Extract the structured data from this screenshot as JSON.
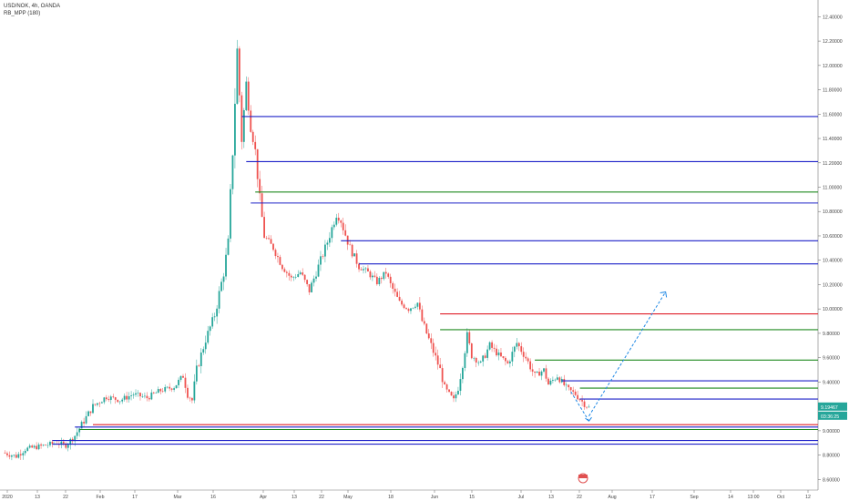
{
  "header": {
    "symbol_line": "USD/NOK, 4h, OANDA",
    "indicator_line": "RB_MPP (180)"
  },
  "price_tags": {
    "last_price": "9.19467",
    "countdown": "03:36:25"
  },
  "colors": {
    "up_candle": "#26a69a",
    "down_candle": "#ef5350",
    "blue_level": "#1c20c8",
    "green_level": "#1f8a1f",
    "red_level": "#e0202a",
    "arrow": "#1e88e5",
    "price_tag": "#26a69a"
  },
  "chart_data": {
    "type": "candlestick",
    "title": "USD/NOK, 4h, OANDA",
    "ylim": [
      8.55,
      12.5
    ],
    "y_ticks": [
      "12.40000",
      "12.20000",
      "12.00000",
      "11.80000",
      "11.60000",
      "11.40000",
      "11.20000",
      "11.00000",
      "10.80000",
      "10.60000",
      "10.40000",
      "10.20000",
      "10.00000",
      "9.80000",
      "9.60000",
      "9.40000",
      "9.20000",
      "9.00000",
      "8.80000",
      "8.60000"
    ],
    "x_ticks": [
      "2020",
      "13",
      "22",
      "Feb",
      "17",
      "Mar",
      "16",
      "Apr",
      "13",
      "22",
      "May",
      "18",
      "Jun",
      "15",
      "Jul",
      "13",
      "22",
      "Aug",
      "17",
      "Sep",
      "14",
      "13:00",
      "Oct",
      "12"
    ],
    "price_path": [
      [
        0,
        8.82
      ],
      [
        3,
        8.79
      ],
      [
        5,
        8.85
      ],
      [
        8,
        8.87
      ],
      [
        12,
        8.9
      ],
      [
        14,
        8.88
      ],
      [
        16,
        8.96
      ],
      [
        18,
        9.08
      ],
      [
        20,
        9.2
      ],
      [
        23,
        9.28
      ],
      [
        26,
        9.25
      ],
      [
        29,
        9.3
      ],
      [
        32,
        9.27
      ],
      [
        35,
        9.33
      ],
      [
        38,
        9.36
      ],
      [
        40,
        9.45
      ],
      [
        41,
        9.3
      ],
      [
        42,
        9.25
      ],
      [
        43,
        9.5
      ],
      [
        45,
        9.75
      ],
      [
        47,
        9.95
      ],
      [
        49,
        10.3
      ],
      [
        50,
        10.55
      ],
      [
        51,
        11.3
      ],
      [
        52,
        12.12
      ],
      [
        53,
        11.4
      ],
      [
        54,
        11.85
      ],
      [
        55,
        11.5
      ],
      [
        56,
        11.3
      ],
      [
        57,
        10.9
      ],
      [
        58,
        10.6
      ],
      [
        60,
        10.5
      ],
      [
        62,
        10.35
      ],
      [
        64,
        10.25
      ],
      [
        66,
        10.3
      ],
      [
        68,
        10.15
      ],
      [
        70,
        10.35
      ],
      [
        72,
        10.55
      ],
      [
        74,
        10.78
      ],
      [
        75,
        10.72
      ],
      [
        77,
        10.5
      ],
      [
        79,
        10.35
      ],
      [
        81,
        10.3
      ],
      [
        83,
        10.22
      ],
      [
        85,
        10.3
      ],
      [
        86,
        10.2
      ],
      [
        88,
        10.05
      ],
      [
        90,
        10.0
      ],
      [
        92,
        10.05
      ],
      [
        93,
        9.9
      ],
      [
        95,
        9.7
      ],
      [
        97,
        9.5
      ],
      [
        98,
        9.35
      ],
      [
        99,
        9.3
      ],
      [
        100,
        9.25
      ],
      [
        101,
        9.35
      ],
      [
        102,
        9.55
      ],
      [
        103,
        9.78
      ],
      [
        104,
        9.62
      ],
      [
        106,
        9.55
      ],
      [
        108,
        9.7
      ],
      [
        110,
        9.62
      ],
      [
        112,
        9.55
      ],
      [
        114,
        9.72
      ],
      [
        116,
        9.6
      ],
      [
        118,
        9.45
      ],
      [
        120,
        9.5
      ],
      [
        121,
        9.38
      ],
      [
        123,
        9.45
      ],
      [
        125,
        9.35
      ],
      [
        127,
        9.3
      ],
      [
        129,
        9.22
      ],
      [
        130,
        9.19
      ]
    ],
    "levels": [
      {
        "price": 11.58,
        "color": "blue",
        "start": 53
      },
      {
        "price": 11.21,
        "color": "blue",
        "start": 54
      },
      {
        "price": 10.96,
        "color": "green",
        "start": 56
      },
      {
        "price": 10.87,
        "color": "blue",
        "start": 55
      },
      {
        "price": 10.56,
        "color": "blue",
        "start": 75
      },
      {
        "price": 10.37,
        "color": "blue",
        "start": 79
      },
      {
        "price": 9.96,
        "color": "red",
        "start": 97
      },
      {
        "price": 9.83,
        "color": "green",
        "start": 97
      },
      {
        "price": 9.58,
        "color": "green",
        "start": 118
      },
      {
        "price": 9.41,
        "color": "blue",
        "start": 124
      },
      {
        "price": 9.35,
        "color": "green",
        "start": 128
      },
      {
        "price": 9.26,
        "color": "blue",
        "start": 128
      },
      {
        "price": 9.05,
        "color": "red",
        "start": 20
      },
      {
        "price": 9.01,
        "color": "green",
        "start": 17
      },
      {
        "price": 8.92,
        "color": "blue",
        "start": 11
      },
      {
        "price": 8.89,
        "color": "blue",
        "start": 11
      },
      {
        "price": 9.03,
        "color": "blue",
        "start": 16
      }
    ],
    "projection": {
      "down_from": [
        126,
        9.32
      ],
      "down_to": [
        130,
        9.08
      ],
      "up_from": [
        130,
        9.12
      ],
      "up_to": [
        147,
        10.14
      ]
    },
    "grid": false,
    "last_price": 9.19467
  }
}
